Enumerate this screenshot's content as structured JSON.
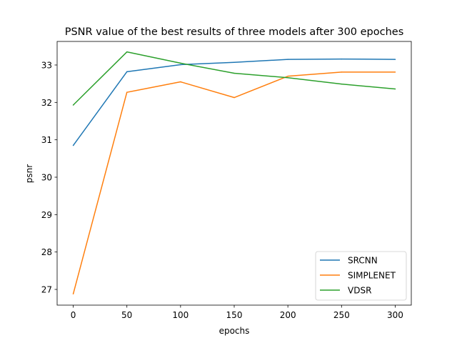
{
  "chart_data": {
    "type": "line",
    "title": "PSNR value of the best results of three models after 300 epoches",
    "xlabel": "epochs",
    "ylabel": "psnr",
    "x": [
      0,
      50,
      100,
      150,
      200,
      250,
      300
    ],
    "xlim": [
      -15,
      315
    ],
    "ylim": [
      26.58,
      33.63
    ],
    "xticks": [
      0,
      50,
      100,
      150,
      200,
      250,
      300
    ],
    "yticks": [
      27,
      28,
      29,
      30,
      31,
      32,
      33
    ],
    "grid": false,
    "legend_position": "lower-right",
    "series": [
      {
        "name": "SRCNN",
        "color": "#1f77b4",
        "values": [
          30.85,
          32.82,
          33.01,
          33.07,
          33.15,
          33.16,
          33.15
        ]
      },
      {
        "name": "SIMPLENET",
        "color": "#ff7f0e",
        "values": [
          26.88,
          32.27,
          32.55,
          32.13,
          32.7,
          32.81,
          32.81
        ]
      },
      {
        "name": "VDSR",
        "color": "#2ca02c",
        "values": [
          31.93,
          33.35,
          33.05,
          32.78,
          32.66,
          32.49,
          32.36
        ]
      }
    ]
  }
}
